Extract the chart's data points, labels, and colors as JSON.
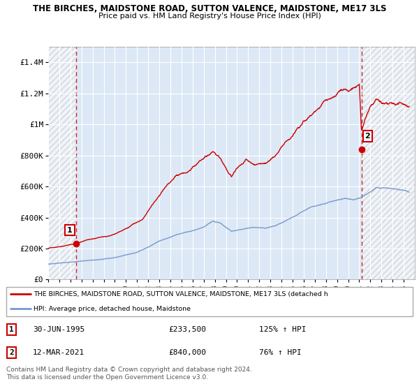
{
  "title_line1": "THE BIRCHES, MAIDSTONE ROAD, SUTTON VALENCE, MAIDSTONE, ME17 3LS",
  "title_line2": "Price paid vs. HM Land Registry's House Price Index (HPI)",
  "ylim": [
    0,
    1500000
  ],
  "yticks": [
    0,
    200000,
    400000,
    600000,
    800000,
    1000000,
    1200000,
    1400000
  ],
  "ytick_labels": [
    "£0",
    "£200K",
    "£400K",
    "£600K",
    "£800K",
    "£1M",
    "£1.2M",
    "£1.4M"
  ],
  "point1": {
    "date_num": 1995.5,
    "value": 233500,
    "label": "1"
  },
  "point2": {
    "date_num": 2021.2,
    "value": 840000,
    "label": "2"
  },
  "red_line_color": "#cc0000",
  "blue_line_color": "#7799cc",
  "dashed_line_color": "#cc0000",
  "plot_bg_color": "#dce8f5",
  "grid_color": "#ffffff",
  "legend_label1": "THE BIRCHES, MAIDSTONE ROAD, SUTTON VALENCE, MAIDSTONE, ME17 3LS (detached h",
  "legend_label2": "HPI: Average price, detached house, Maidstone",
  "table_row1": [
    "1",
    "30-JUN-1995",
    "£233,500",
    "125% ↑ HPI"
  ],
  "table_row2": [
    "2",
    "12-MAR-2021",
    "£840,000",
    "76% ↑ HPI"
  ],
  "footnote": "Contains HM Land Registry data © Crown copyright and database right 2024.\nThis data is licensed under the Open Government Licence v3.0.",
  "xmin": 1993,
  "xmax": 2026
}
